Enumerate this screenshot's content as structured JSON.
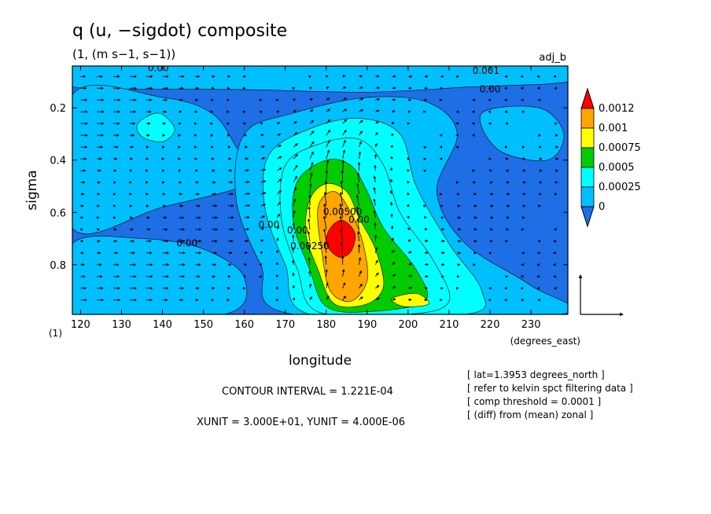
{
  "chart_data": {
    "type": "heatmap",
    "title": "q (u, −sigdot) composite",
    "subtitle": "(1, (m s−1, s−1))",
    "tag": "adj_b",
    "xlabel": "longitude",
    "xunit_label": "(degrees_east)",
    "ylabel": "sigma",
    "y_unit_tag": "(1)",
    "x_ticks": [
      "120",
      "130",
      "140",
      "150",
      "160",
      "170",
      "180",
      "190",
      "200",
      "210",
      "220",
      "230"
    ],
    "y_ticks": [
      "0.2",
      "0.4",
      "0.6",
      "0.8"
    ],
    "xlim": [
      118,
      239
    ],
    "ylim": [
      0.04,
      0.99
    ],
    "y_inverted": true,
    "grid": false,
    "colorbar": {
      "levels": [
        "0.0012",
        "0.001",
        "0.00075",
        "0.0005",
        "0.00025",
        "0"
      ],
      "colors": [
        "#ff0000",
        "#ffa500",
        "#ffff00",
        "#00cc00",
        "#00ffff",
        "#00bfff",
        "#1e6ee6"
      ]
    },
    "contour_labels": [
      {
        "text": "0.00",
        "x": 139,
        "y": 0.06
      },
      {
        "text": "0.001",
        "x": 219,
        "y": 0.07
      },
      {
        "text": "0.00",
        "x": 220,
        "y": 0.14
      },
      {
        "text": "0.00",
        "x": 146,
        "y": 0.73
      },
      {
        "text": "0.00",
        "x": 166,
        "y": 0.66
      },
      {
        "text": "0.00",
        "x": 173,
        "y": 0.68
      },
      {
        "text": "0.00250",
        "x": 176,
        "y": 0.74
      },
      {
        "text": "0.00500",
        "x": 184,
        "y": 0.61
      },
      {
        "text": "0.00",
        "x": 188,
        "y": 0.64
      }
    ],
    "contour_interval": "CONTOUR INTERVAL = 1.221E-04",
    "units_line": "XUNIT = 3.000E+01, YUNIT = 4.000E-06",
    "notes": [
      "[ lat=1.3953 degrees_north ]",
      "[ refer to kelvin spct filtering data ]",
      "[ comp threshold = 0.0001 ]",
      "[ (diff) from (mean) zonal ]"
    ]
  }
}
